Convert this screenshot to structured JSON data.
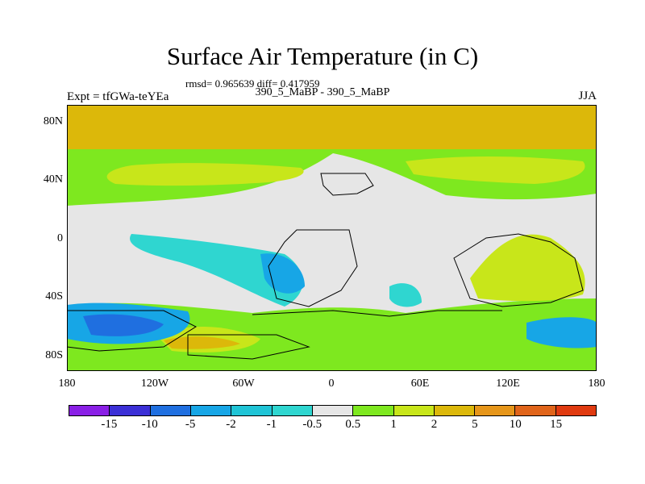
{
  "title": "Surface Air Temperature (in C)",
  "stats": "rmsd= 0.965639 diff= 0.417959",
  "expt": "Expt = tfGWa-teYEa",
  "subtitle": "390_5_MaBP - 390_5_MaBP",
  "season": "JJA",
  "yaxis_labels": [
    "80N",
    "40N",
    "0",
    "40S",
    "80S"
  ],
  "xaxis_labels": [
    "180",
    "120W",
    "60W",
    "0",
    "60E",
    "120E",
    "180"
  ],
  "colorbar": {
    "colors": [
      "#8a1fe6",
      "#3b2fd6",
      "#1f6fe0",
      "#17a6e6",
      "#1fc4d6",
      "#2fd6d0",
      "#e6e6e6",
      "#7ee81f",
      "#c8e61a",
      "#dcb80a",
      "#e6961a",
      "#e0641a",
      "#e03a10"
    ],
    "labels": [
      "-15",
      "-10",
      "-5",
      "-2",
      "-1",
      "-0.5",
      "0.5",
      "1",
      "2",
      "5",
      "10",
      "15"
    ]
  },
  "colors": {
    "neutral": "#e6e6e6",
    "warm_1": "#7ee81f",
    "warm_2": "#c8e61a",
    "warm_3": "#dcb80a",
    "warm_4": "#e6961a",
    "cool_1": "#2fd6d0",
    "cool_2": "#17a6e6",
    "cool_3": "#1f6fe0"
  }
}
